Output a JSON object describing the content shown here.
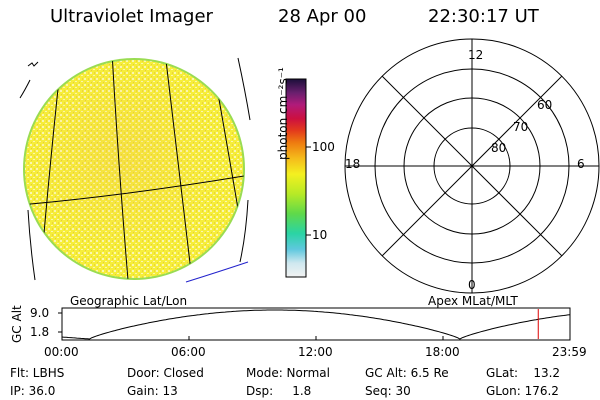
{
  "header": {
    "instrument": "Ultraviolet Imager",
    "date": "28 Apr 00",
    "time": "22:30:17 UT"
  },
  "colorbar": {
    "unit_label": "photon cm⁻²s⁻¹",
    "ticks": [
      "100",
      "10"
    ]
  },
  "polar_plot": {
    "clock_labels": [
      "12",
      "18",
      "6",
      "0"
    ],
    "lat_labels": [
      "60",
      "70",
      "80"
    ],
    "caption": "Apex MLat/MLT"
  },
  "image_panel": {
    "caption": "Geographic Lat/Lon"
  },
  "altitude_panel": {
    "axis_label": "GC Alt",
    "y_ticks": [
      "9.0",
      "1.8"
    ],
    "time_ticks": [
      "00:00",
      "06:00",
      "12:00",
      "18:00",
      "23:59"
    ],
    "marker_time_hours": 22.5
  },
  "info": {
    "flt": "Flt: LBHS",
    "ip": "IP: 36.0",
    "door": "Door: Closed",
    "gain": "Gain: 13",
    "mode": "Mode: Normal",
    "dsp": "Dsp:     1.8",
    "gc_alt": "GC Alt: 6.5 Re",
    "seq": "Seq: 30",
    "glat": "GLat:    13.2",
    "glon": "GLon: 176.2"
  }
}
